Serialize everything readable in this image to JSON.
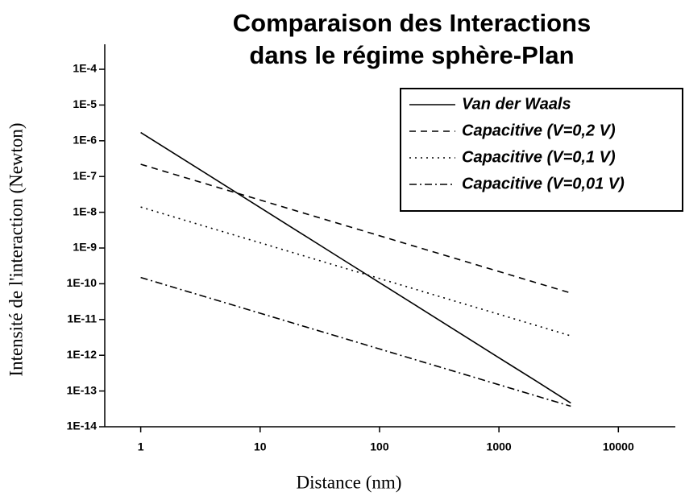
{
  "chart_data": {
    "type": "line",
    "title": [
      "Comparaison des Interactions",
      "dans le régime sphère-Plan"
    ],
    "x_label": "Distance (nm)",
    "y_label": "Intensité de l'interaction (Newton)",
    "log_x": true,
    "log_y": true,
    "xlim": [
      0.5,
      30000
    ],
    "xticks": [
      1,
      10,
      100,
      1000,
      10000
    ],
    "ylim": [
      1e-14,
      0.0005
    ],
    "yticks": [
      {
        "value": 1e-14,
        "label": "1E-14"
      },
      {
        "value": 1e-13,
        "label": "1E-13"
      },
      {
        "value": 1e-12,
        "label": "1E-12"
      },
      {
        "value": 1e-11,
        "label": "1E-11"
      },
      {
        "value": 1e-10,
        "label": "1E-10"
      },
      {
        "value": 1e-09,
        "label": "1E-9"
      },
      {
        "value": 1e-08,
        "label": "1E-8"
      },
      {
        "value": 1e-07,
        "label": "1E-7"
      },
      {
        "value": 1e-06,
        "label": "1E-6"
      },
      {
        "value": 1e-05,
        "label": "1E-5"
      },
      {
        "value": 0.0001,
        "label": "1E-4"
      }
    ],
    "legend": "upper right",
    "x": [
      1,
      2,
      5,
      10,
      20,
      50,
      100,
      200,
      500,
      1000,
      2000,
      4000
    ],
    "series": [
      {
        "name": "Van der Waals",
        "color": "#000000",
        "dash": "solid",
        "values": [
          1.7e-06,
          3.97e-07,
          5.8e-08,
          1.35e-08,
          3.15e-09,
          4.6e-10,
          1.07e-10,
          2.5e-11,
          3.65e-12,
          8.5e-13,
          2e-13,
          4.6e-14
        ]
      },
      {
        "name": "Capacitive (V=0,2 V)",
        "color": "#000000",
        "dash": "dashed",
        "values": [
          2.2e-07,
          1.1e-07,
          4.4e-08,
          2.2e-08,
          1.1e-08,
          4.4e-09,
          2.2e-09,
          1.1e-09,
          4.4e-10,
          2.2e-10,
          1.1e-10,
          5.5e-11
        ]
      },
      {
        "name": "Capacitive (V=0,1 V)",
        "color": "#000000",
        "dash": "dotted",
        "values": [
          1.4e-08,
          7e-09,
          2.8e-09,
          1.4e-09,
          7e-10,
          2.8e-10,
          1.4e-10,
          7e-11,
          2.8e-11,
          1.4e-11,
          7e-12,
          3.5e-12
        ]
      },
      {
        "name": "Capacitive (V=0,01 V)",
        "color": "#000000",
        "dash": "dashdot",
        "values": [
          1.5e-10,
          7.5e-11,
          3e-11,
          1.5e-11,
          7.5e-12,
          3e-12,
          1.5e-12,
          7.5e-13,
          3e-13,
          1.5e-13,
          7.5e-14,
          3.75e-14
        ]
      }
    ]
  }
}
